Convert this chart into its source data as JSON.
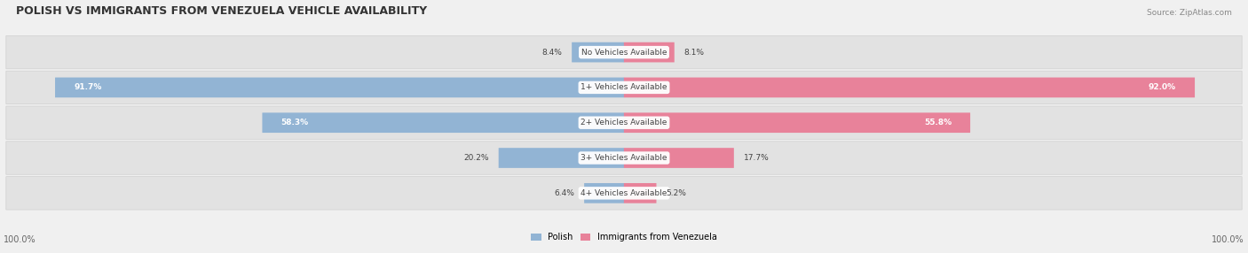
{
  "title": "POLISH VS IMMIGRANTS FROM VENEZUELA VEHICLE AVAILABILITY",
  "source": "Source: ZipAtlas.com",
  "categories": [
    "No Vehicles Available",
    "1+ Vehicles Available",
    "2+ Vehicles Available",
    "3+ Vehicles Available",
    "4+ Vehicles Available"
  ],
  "polish_values": [
    8.4,
    91.7,
    58.3,
    20.2,
    6.4
  ],
  "venezuela_values": [
    8.1,
    92.0,
    55.8,
    17.7,
    5.2
  ],
  "polish_color": "#92b4d4",
  "venezuela_color": "#e8829a",
  "bar_height": 0.55,
  "figsize": [
    14.06,
    2.86
  ],
  "dpi": 100
}
